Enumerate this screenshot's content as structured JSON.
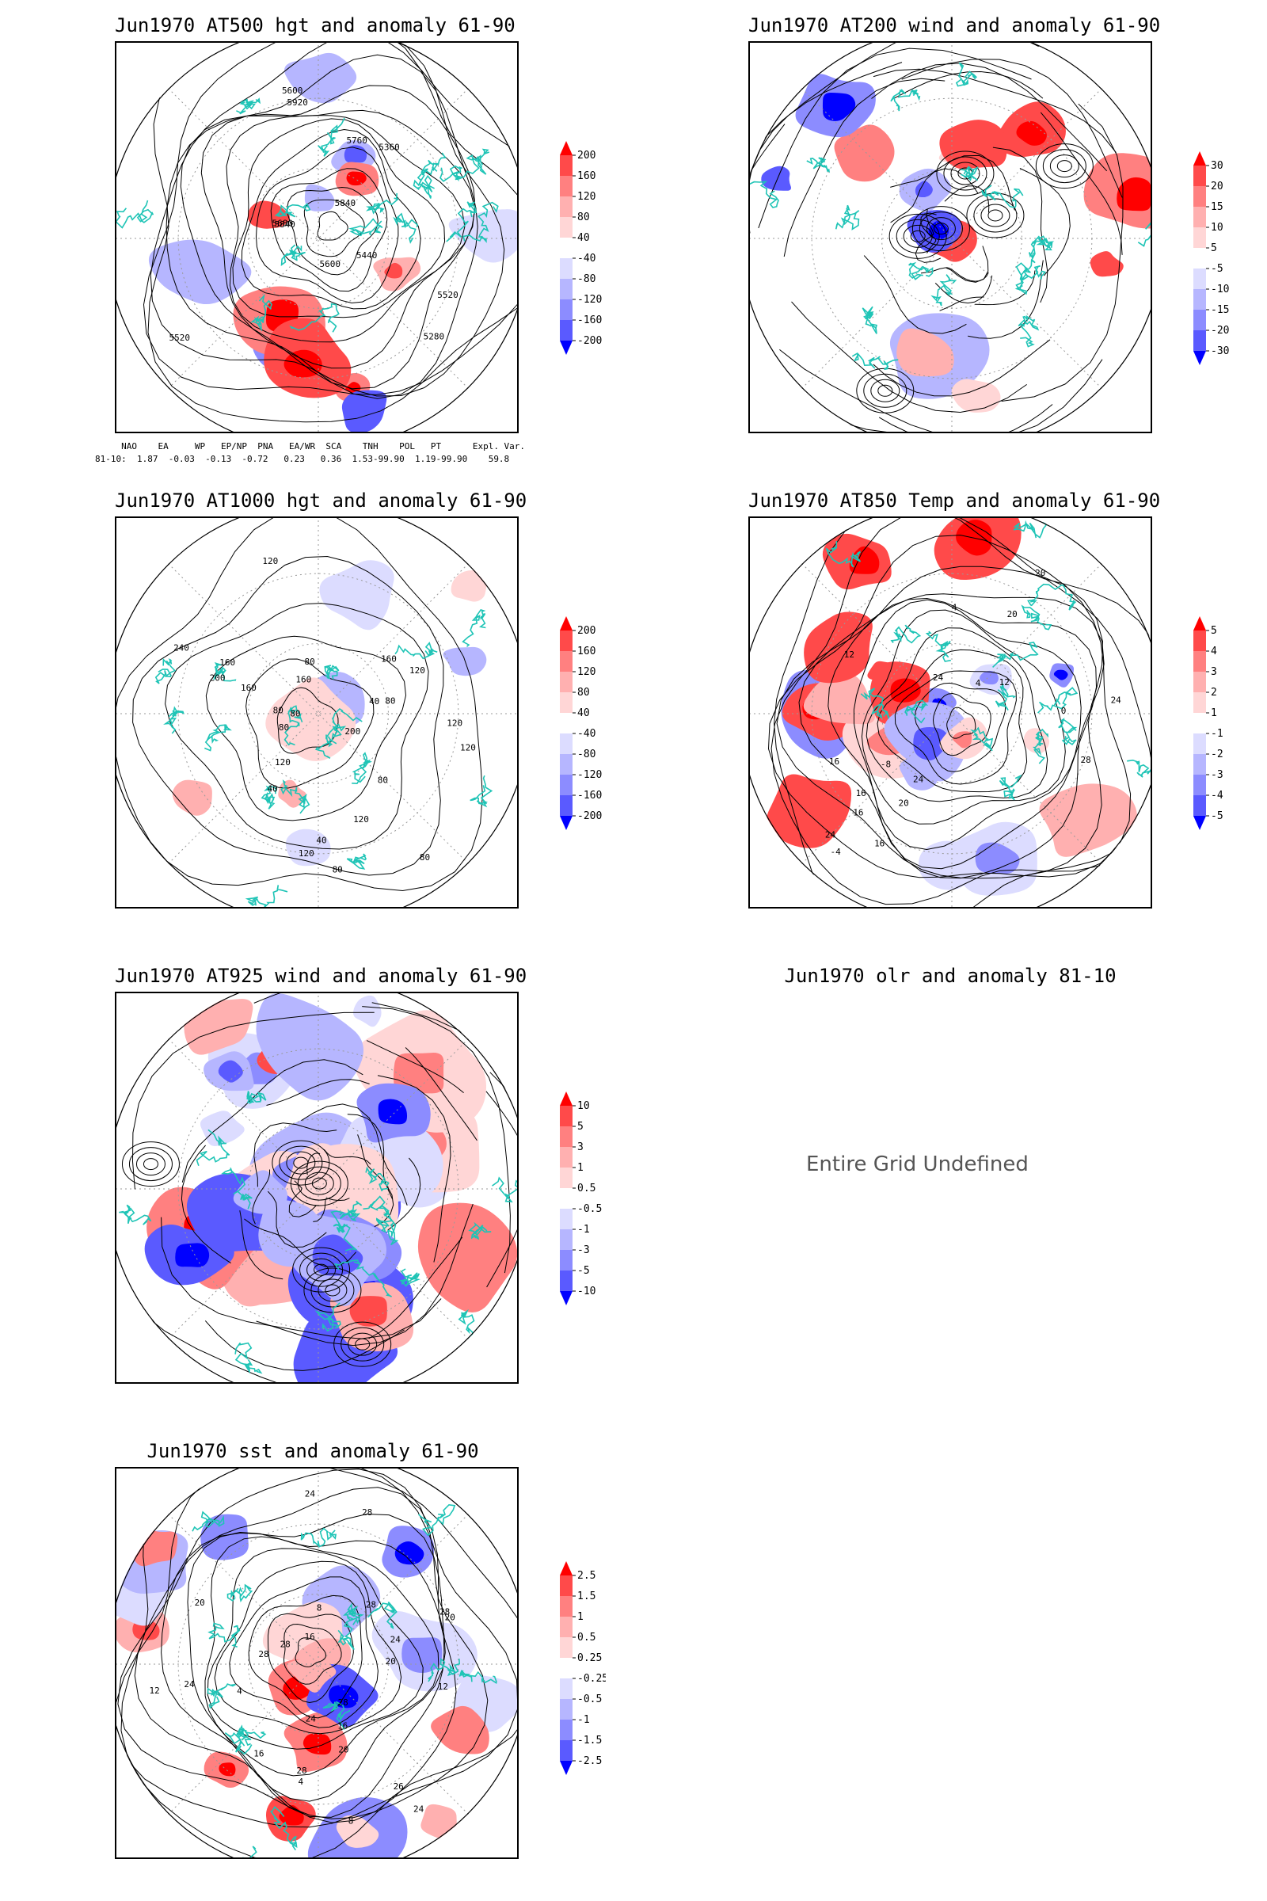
{
  "panels": [
    {
      "id": "p500",
      "title": "Jun1970 AT500 hgt and anomaly 61-90",
      "colorbar": [
        "200",
        "160",
        "120",
        "80",
        "40",
        "-40",
        "-80",
        "-120",
        "-160",
        "-200"
      ],
      "contour_labels": [
        "5520",
        "5600",
        "5280",
        "5360",
        "5440",
        "5520",
        "5600",
        "5680",
        "5760",
        "5840",
        "5840",
        "5920"
      ],
      "anom_style": "blobs"
    },
    {
      "id": "p200",
      "title": "Jun1970 AT200 wind and anomaly 61-90",
      "colorbar": [
        "30",
        "20",
        "15",
        "10",
        "5",
        "-5",
        "-10",
        "-15",
        "-20",
        "-30"
      ],
      "contour_labels": [],
      "anom_style": "streamlines"
    },
    {
      "id": "p1000",
      "title": "Jun1970 AT1000 hgt and anomaly 61-90",
      "colorbar": [
        "200",
        "160",
        "120",
        "80",
        "40",
        "-40",
        "-80",
        "-120",
        "-160",
        "-200"
      ],
      "contour_labels": [
        "80",
        "80",
        "80",
        "120",
        "160",
        "160",
        "120",
        "200",
        "160",
        "120",
        "80",
        "40",
        "40",
        "40",
        "80",
        "120",
        "200",
        "240",
        "160",
        "120",
        "80",
        "120",
        "80",
        "80",
        "120"
      ],
      "anom_style": "light"
    },
    {
      "id": "p850",
      "title": "Jun1970 AT850 Temp and anomaly 61-90",
      "colorbar": [
        "5",
        "4",
        "3",
        "2",
        "1",
        "-1",
        "-2",
        "-3",
        "-4",
        "-5"
      ],
      "contour_labels": [
        "16",
        "12",
        "4",
        "4",
        "24",
        "0",
        "-8",
        "20",
        "-4",
        "16",
        "28",
        "24",
        "12",
        "20",
        "16",
        "24",
        "20",
        "24",
        "16"
      ],
      "anom_style": "strong"
    },
    {
      "id": "p925",
      "title": "Jun1970 AT925 wind and anomaly 61-90",
      "colorbar": [
        "10",
        "5",
        "3",
        "1",
        "0.5",
        "-0.5",
        "-1",
        "-3",
        "-5",
        "-10"
      ],
      "contour_labels": [],
      "anom_style": "filled"
    },
    {
      "id": "psst",
      "title": "Jun1970 sst and anomaly 61-90",
      "colorbar": [
        "2.5",
        "1.5",
        "1",
        "0.5",
        "0.25",
        "-0.25",
        "-0.5",
        "-1",
        "-1.5",
        "-2.5"
      ],
      "contour_labels": [
        "28",
        "26",
        "24",
        "28",
        "20",
        "24",
        "20",
        "16",
        "12",
        "8",
        "4",
        "28",
        "24",
        "20",
        "16",
        "12",
        "8",
        "4",
        "28",
        "20",
        "16",
        "24",
        "28",
        "28",
        "24",
        "28"
      ],
      "anom_style": "sst"
    }
  ],
  "olr": {
    "title": "Jun1970 olr and anomaly 81-10",
    "message": "Entire Grid Undefined"
  },
  "teleconnection": {
    "header": "     NAO    EA     WP   EP/NP  PNA   EA/WR  SCA    TNH    POL   PT      Expl. Var.",
    "row": "81-10:  1.87  -0.03  -0.13  -0.72   0.23   0.36  1.53-99.90  1.19-99.90    59.8"
  },
  "colors": {
    "coast": "#1fc4b6",
    "pos_strong": "#ff0000",
    "neg_strong": "#0000ff",
    "contour": "#000000",
    "grid": "#9a9a9a"
  }
}
